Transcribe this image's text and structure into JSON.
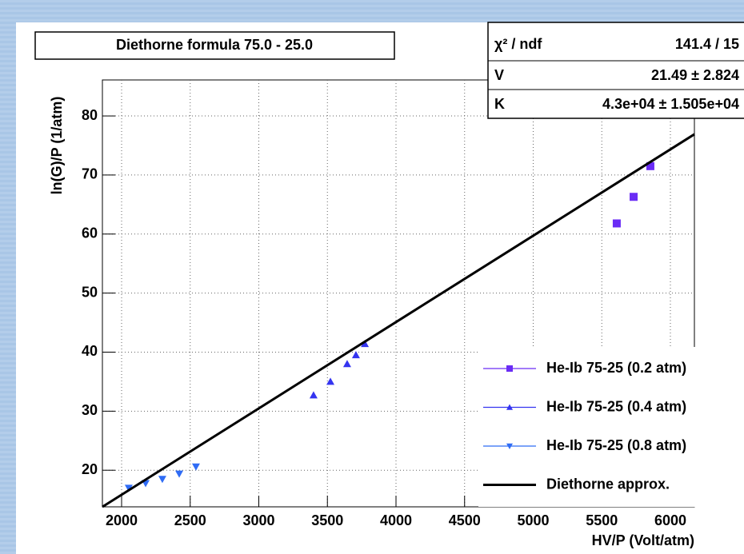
{
  "chart_data": {
    "type": "scatter",
    "title": "Diethorne formula 75.0 - 25.0",
    "x_label": "HV/P (Volt/atm)",
    "y_label": "ln(G)/P (1/atm)",
    "xlim": [
      1860,
      6175
    ],
    "ylim": [
      13.8,
      86.1
    ],
    "xticks": [
      2000,
      2500,
      3000,
      3500,
      4000,
      4500,
      5000,
      5500,
      6000
    ],
    "yticks": [
      20,
      30,
      40,
      50,
      60,
      70,
      80
    ],
    "grid": true,
    "legend": "lower right",
    "series": [
      {
        "name": "He-Ib 75-25 (0.2 atm)",
        "color": "#6a2cf5",
        "marker": "square",
        "x": [
          5609,
          5732,
          5854
        ],
        "values": [
          61.8,
          66.3,
          71.5
        ]
      },
      {
        "name": "He-Ib 75-25 (0.4 atm)",
        "color": "#3434f0",
        "marker": "triangle-up",
        "x": [
          3399,
          3522,
          3644,
          3708,
          3773
        ],
        "values": [
          32.7,
          35.0,
          38.0,
          39.5,
          41.4
        ]
      },
      {
        "name": "He-Ib 75-25 (0.8 atm)",
        "color": "#2f6cf5",
        "marker": "triangle-down",
        "x": [
          2052,
          2175,
          2297,
          2420,
          2542
        ],
        "values": [
          17.0,
          17.8,
          18.5,
          19.4,
          20.6
        ]
      },
      {
        "name": "Diethorne approx.",
        "color": "#000000",
        "marker": "line",
        "x": [
          1860,
          6175
        ],
        "values": [
          13.8,
          76.9
        ]
      }
    ],
    "stats": [
      {
        "label": "χ² / ndf",
        "value": "141.4 / 15"
      },
      {
        "label": "V",
        "value": "21.49 ± 2.824"
      },
      {
        "label": "K",
        "value": "4.3e+04 ± 1.505e+04"
      }
    ]
  }
}
